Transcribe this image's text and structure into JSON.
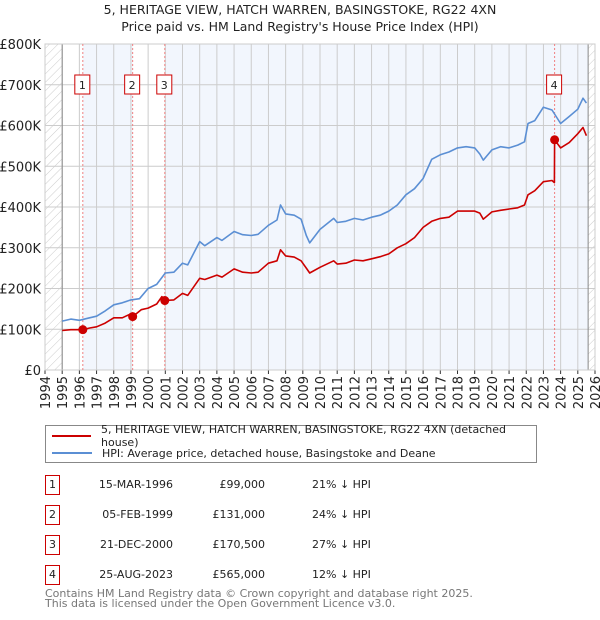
{
  "chart_data": {
    "type": "line",
    "title": "5, HERITAGE VIEW, HATCH WARREN, BASINGSTOKE, RG22 4XN",
    "subtitle": "Price paid vs. HM Land Registry's House Price Index (HPI)",
    "xlim": [
      1994,
      2026
    ],
    "ylim": [
      0,
      800000
    ],
    "y_ticks": [
      {
        "v": 0,
        "label": "£0"
      },
      {
        "v": 100000,
        "label": "£100K"
      },
      {
        "v": 200000,
        "label": "£200K"
      },
      {
        "v": 300000,
        "label": "£300K"
      },
      {
        "v": 400000,
        "label": "£400K"
      },
      {
        "v": 500000,
        "label": "£500K"
      },
      {
        "v": 600000,
        "label": "£600K"
      },
      {
        "v": 700000,
        "label": "£700K"
      },
      {
        "v": 800000,
        "label": "£800K"
      }
    ],
    "x_ticks": [
      "1994",
      "1995",
      "1996",
      "1997",
      "1998",
      "1999",
      "2000",
      "2001",
      "2002",
      "2003",
      "2004",
      "2005",
      "2006",
      "2007",
      "2008",
      "2009",
      "2010",
      "2011",
      "2012",
      "2013",
      "2014",
      "2015",
      "2016",
      "2017",
      "2018",
      "2019",
      "2020",
      "2021",
      "2022",
      "2023",
      "2024",
      "2025",
      "2026"
    ],
    "grid": true,
    "data_range": [
      1995,
      2025.6
    ],
    "series": [
      {
        "name": "5, HERITAGE VIEW, HATCH WARREN, BASINGSTOKE, RG22 4XN (detached house)",
        "color": "#cc0000",
        "x": [
          1995,
          1995.5,
          1996.2,
          1996.6,
          1997,
          1997.5,
          1998,
          1998.5,
          1999,
          1999.1,
          1999.6,
          2000,
          2000.5,
          2000.8,
          2000.97,
          2001.5,
          2002,
          2002.3,
          2003,
          2003.3,
          2004,
          2004.3,
          2005,
          2005.5,
          2006,
          2006.4,
          2007,
          2007.5,
          2007.7,
          2008,
          2008.5,
          2008.9,
          2009.2,
          2009.4,
          2010,
          2010.8,
          2011,
          2011.5,
          2012,
          2012.5,
          2013,
          2013.5,
          2014,
          2014.5,
          2015,
          2015.5,
          2016,
          2016.5,
          2017,
          2017.5,
          2018,
          2018.5,
          2019,
          2019.3,
          2019.5,
          2020,
          2020.5,
          2021,
          2021.5,
          2021.9,
          2022.1,
          2022.5,
          2023,
          2023.5,
          2023.64,
          2023.65,
          2024,
          2024.5,
          2025,
          2025.3,
          2025.5
        ],
        "y": [
          97000,
          99000,
          99000,
          103000,
          106000,
          115000,
          128000,
          128000,
          138000,
          131000,
          148000,
          152000,
          162000,
          180000,
          170500,
          172000,
          188000,
          183000,
          225000,
          222000,
          233000,
          228000,
          248000,
          240000,
          238000,
          240000,
          262000,
          268000,
          295000,
          280000,
          277000,
          268000,
          250000,
          238000,
          252000,
          268000,
          260000,
          262000,
          270000,
          268000,
          273000,
          278000,
          285000,
          300000,
          310000,
          325000,
          350000,
          365000,
          372000,
          375000,
          390000,
          390000,
          390000,
          385000,
          370000,
          388000,
          392000,
          395000,
          398000,
          405000,
          430000,
          440000,
          462000,
          465000,
          460000,
          565000,
          545000,
          558000,
          580000,
          595000,
          575000
        ]
      },
      {
        "name": "HPI: Average price, detached house, Basingstoke and Deane",
        "color": "#5b8fd4",
        "x": [
          1995,
          1995.5,
          1996,
          1996.5,
          1997,
          1997.5,
          1998,
          1998.5,
          1999,
          1999.5,
          2000,
          2000.5,
          2001,
          2001.5,
          2002,
          2002.3,
          2003,
          2003.3,
          2004,
          2004.3,
          2005,
          2005.5,
          2006,
          2006.4,
          2007,
          2007.5,
          2007.7,
          2008,
          2008.5,
          2008.9,
          2009.2,
          2009.4,
          2010,
          2010.8,
          2011,
          2011.5,
          2012,
          2012.5,
          2013,
          2013.5,
          2014,
          2014.5,
          2015,
          2015.5,
          2016,
          2016.5,
          2017,
          2017.5,
          2018,
          2018.5,
          2019,
          2019.3,
          2019.5,
          2020,
          2020.5,
          2021,
          2021.5,
          2021.9,
          2022.1,
          2022.5,
          2023,
          2023.5,
          2024,
          2024.5,
          2025,
          2025.3,
          2025.5
        ],
        "y": [
          120000,
          125000,
          122000,
          127000,
          132000,
          145000,
          160000,
          165000,
          172000,
          175000,
          200000,
          210000,
          238000,
          240000,
          262000,
          258000,
          315000,
          305000,
          325000,
          318000,
          340000,
          332000,
          330000,
          333000,
          355000,
          368000,
          405000,
          383000,
          380000,
          370000,
          330000,
          312000,
          345000,
          372000,
          362000,
          365000,
          372000,
          368000,
          375000,
          380000,
          390000,
          405000,
          430000,
          445000,
          470000,
          517000,
          528000,
          535000,
          545000,
          548000,
          545000,
          530000,
          515000,
          540000,
          548000,
          545000,
          552000,
          560000,
          605000,
          612000,
          645000,
          638000,
          605000,
          622000,
          640000,
          667000,
          655000
        ]
      }
    ],
    "sales": [
      {
        "n": "1",
        "x": 1996.2,
        "price": 99000
      },
      {
        "n": "2",
        "x": 1999.1,
        "price": 131000
      },
      {
        "n": "3",
        "x": 2000.97,
        "price": 170500
      },
      {
        "n": "4",
        "x": 2023.65,
        "price": 565000
      }
    ]
  },
  "header": {
    "title": "5, HERITAGE VIEW, HATCH WARREN, BASINGSTOKE, RG22 4XN",
    "subtitle": "Price paid vs. HM Land Registry's House Price Index (HPI)"
  },
  "legend": {
    "property": "5, HERITAGE VIEW, HATCH WARREN, BASINGSTOKE, RG22 4XN (detached house)",
    "hpi": "HPI: Average price, detached house, Basingstoke and Deane"
  },
  "transactions": [
    {
      "n": "1",
      "date": "15-MAR-1996",
      "price": "£99,000",
      "pct": "21% ↓ HPI"
    },
    {
      "n": "2",
      "date": "05-FEB-1999",
      "price": "£131,000",
      "pct": "24% ↓ HPI"
    },
    {
      "n": "3",
      "date": "21-DEC-2000",
      "price": "£170,500",
      "pct": "27% ↓ HPI"
    },
    {
      "n": "4",
      "date": "25-AUG-2023",
      "price": "£565,000",
      "pct": "12% ↓ HPI"
    }
  ],
  "footer": {
    "line1": "Contains HM Land Registry data © Crown copyright and database right 2025.",
    "line2": "This data is licensed under the Open Government Licence v3.0."
  }
}
